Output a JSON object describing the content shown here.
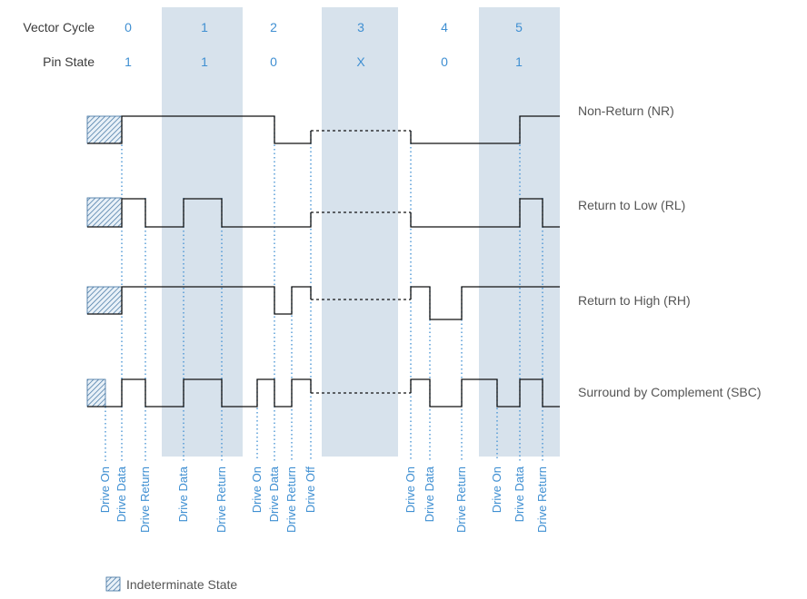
{
  "header": {
    "vector_cycle_label": "Vector Cycle",
    "pin_state_label": "Pin State",
    "cycles": [
      "0",
      "1",
      "2",
      "3",
      "4",
      "5"
    ],
    "pin_states": [
      "1",
      "1",
      "0",
      "X",
      "0",
      "1"
    ]
  },
  "waveforms": [
    {
      "id": "nr",
      "label": "Non-Return (NR)"
    },
    {
      "id": "rl",
      "label": "Return to Low (RL)"
    },
    {
      "id": "rh",
      "label": "Return to High (RH)"
    },
    {
      "id": "sbc",
      "label": "Surround by Complement (SBC)"
    }
  ],
  "edge_labels": [
    "Drive On",
    "Drive Data",
    "Drive Return",
    "Drive Data",
    "Drive Return",
    "Drive On",
    "Drive Data",
    "Drive Return",
    "Drive Off",
    "Drive On",
    "Drive Data",
    "Drive Return",
    "Drive On",
    "Drive Data",
    "Drive Return"
  ],
  "legend": {
    "label": "Indeterminate State"
  },
  "colors": {
    "band": "#d7e2ec",
    "accent_blue": "#3f8fd2",
    "wave": "#111111",
    "text": "#3a3a3a"
  }
}
